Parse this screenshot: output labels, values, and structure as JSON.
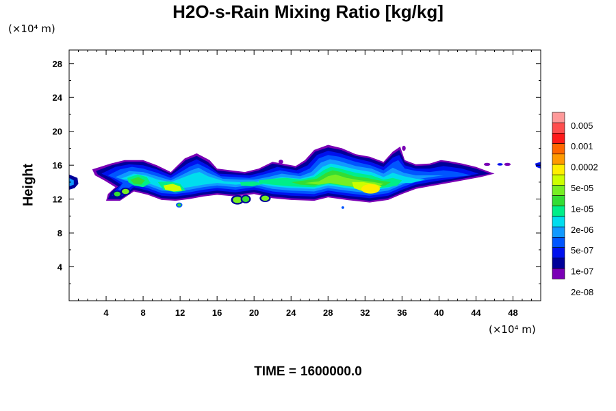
{
  "title": "H2O-s-Rain Mixing Ratio [kg/kg]",
  "y_unit": "(×10⁴ m)",
  "x_unit": "(×10⁴ m)",
  "ylabel": "Height",
  "time_label": "TIME =",
  "time_value": "1600000.0",
  "chart_data": {
    "type": "heatmap",
    "title": "H2O-s-Rain Mixing Ratio [kg/kg]",
    "xlabel": "",
    "ylabel": "Height",
    "xlim": [
      0,
      51
    ],
    "ylim": [
      0,
      29.6
    ],
    "x_ticks": [
      "4",
      "8",
      "12",
      "16",
      "20",
      "24",
      "28",
      "32",
      "36",
      "40",
      "44",
      "48"
    ],
    "y_ticks": [
      "4",
      "8",
      "12",
      "16",
      "20",
      "24",
      "28"
    ],
    "colorbar": {
      "colors": [
        "#ff9999",
        "#ff4d4d",
        "#ff1a1a",
        "#ff6600",
        "#ff9900",
        "#ffee00",
        "#ccff00",
        "#77ee22",
        "#33dd33",
        "#00ee88",
        "#00ddee",
        "#1199ff",
        "#0055ff",
        "#0011ee",
        "#000099",
        "#7a00b5"
      ],
      "labels": [
        "0.005",
        "0.001",
        "0.0002",
        "5e-05",
        "1e-05",
        "2e-06",
        "5e-07",
        "1e-07",
        "2e-08"
      ]
    },
    "cloud_layer": {
      "base_height": 11,
      "top_height": 18.4,
      "x_extent": [
        0,
        51
      ],
      "max_value_location": [
        32.5,
        13
      ]
    }
  }
}
